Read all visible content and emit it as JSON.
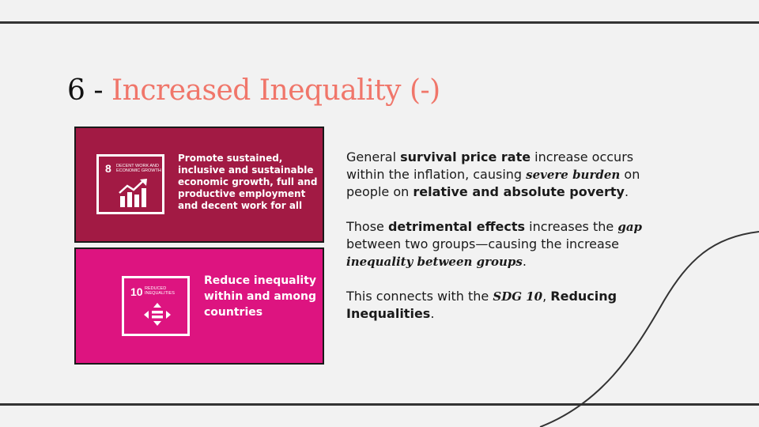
{
  "title": {
    "number": "6",
    "separator": " - ",
    "text": "Increased Inequality (-)"
  },
  "cards": {
    "sdg8": {
      "icon_number": "8",
      "icon_label": "DECENT WORK AND ECONOMIC GROWTH",
      "icon": "rising-bar-chart-icon",
      "text": "Promote sustained, inclusive and sustainable economic growth, full and productive employment and decent work for all",
      "color": "#a21a44"
    },
    "sdg10": {
      "icon_number": "10",
      "icon_label": "REDUCED INEQUALITIES",
      "icon": "equality-arrows-icon",
      "text": "Reduce inequality within and among countries",
      "color": "#dd1480"
    }
  },
  "paragraphs": {
    "p1": {
      "s1": "General ",
      "b1": "survival price rate",
      "s2": " increase occurs within the inflation, causing ",
      "i1": "severe burden",
      "s3": " on people on ",
      "b2": "relative and absolute poverty",
      "s4": "."
    },
    "p2": {
      "s1": "Those ",
      "b1": "detrimental effects",
      "s2": " increases the ",
      "i1": "gap",
      "s3": " between two groups—causing the increase ",
      "i2": "inequality between groups",
      "s4": "."
    },
    "p3": {
      "s1": "This connects with the ",
      "i1": "SDG 10",
      "s2": ", ",
      "b1": "Reducing Inequalities",
      "s3": "."
    }
  },
  "colors": {
    "background": "#f2f2f2",
    "accent": "#f0766a",
    "lines": "#333333"
  }
}
